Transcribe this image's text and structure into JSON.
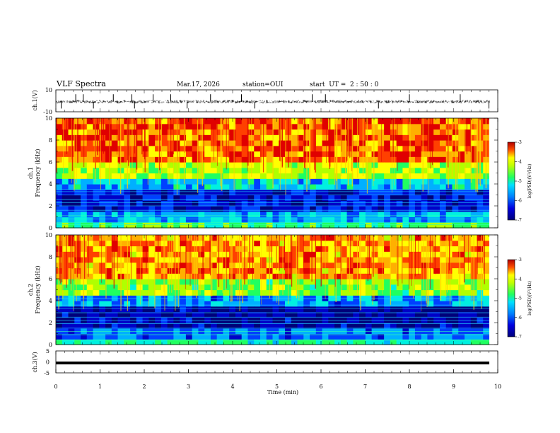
{
  "header": {
    "title": "VLF Spectra",
    "date": "Mar.17, 2026",
    "station": "station=OUI",
    "start": "start  UT =  2 : 50 : 0"
  },
  "chart_data": [
    {
      "type": "line",
      "id": "ch1-waveform",
      "ylabel": "ch.1(V)",
      "ylim": [
        -10,
        10
      ],
      "yticks": [
        "10",
        "-10"
      ],
      "xlim": [
        0,
        10
      ],
      "baseline_v": -0.8,
      "spike_times_min": [
        0.12,
        0.45,
        0.62,
        0.85,
        1.3,
        1.72,
        1.78,
        2.2,
        2.6,
        2.97,
        3.5,
        4.2,
        4.5,
        5.8,
        6.1,
        7.3,
        8.0,
        9.15,
        9.8
      ]
    },
    {
      "type": "heatmap",
      "id": "ch1-spectrogram",
      "ylabel": "ch.1\nFrequency (kHz)",
      "ylim": [
        0,
        10
      ],
      "yticks": [
        "0",
        "2",
        "4",
        "6",
        "8",
        "10"
      ],
      "xlim": [
        0,
        9.85
      ],
      "colorbar": {
        "label": "log(PSD)(V²/Hz)",
        "range": [
          -7,
          -3
        ],
        "ticks": [
          "-3",
          "-4",
          "-5",
          "-6",
          "-7"
        ]
      },
      "lines_khz": [
        0.3,
        0.5,
        0.8,
        1.1,
        1.6,
        2.0,
        2.3,
        2.6,
        3.0,
        3.3,
        3.5
      ]
    },
    {
      "type": "heatmap",
      "id": "ch2-spectrogram",
      "ylabel": "ch.2\nFrequency (kHz)",
      "ylim": [
        0,
        10
      ],
      "yticks": [
        "0",
        "2",
        "4",
        "6",
        "8",
        "10"
      ],
      "xlim": [
        0,
        9.85
      ],
      "colorbar": {
        "label": "log(PSD)(V²/Hz)",
        "range": [
          -7,
          -3
        ],
        "ticks": [
          "-3",
          "-4",
          "-5",
          "-6",
          "-7"
        ]
      },
      "lines_khz": [
        0.4,
        0.9,
        1.2,
        1.5,
        1.9,
        2.2,
        2.5,
        2.9,
        3.3,
        3.6,
        4.2
      ]
    },
    {
      "type": "line",
      "id": "ch3-waveform",
      "ylabel": "ch.3(V)",
      "ylim": [
        -5,
        5
      ],
      "yticks": [
        "5",
        "0",
        "-5"
      ],
      "xlim": [
        0,
        9.85
      ],
      "level_v": -0.5,
      "xlabel": "Time (min)",
      "xticks": [
        "0",
        "1",
        "2",
        "3",
        "4",
        "5",
        "6",
        "7",
        "8",
        "9",
        "10"
      ]
    }
  ],
  "colors": {
    "scale": [
      "#00007a",
      "#0000c8",
      "#0040ff",
      "#00b0ff",
      "#00f0e0",
      "#20ff60",
      "#b0ff00",
      "#ffff00",
      "#ffb000",
      "#ff4000",
      "#e00000",
      "#9a0000"
    ]
  }
}
